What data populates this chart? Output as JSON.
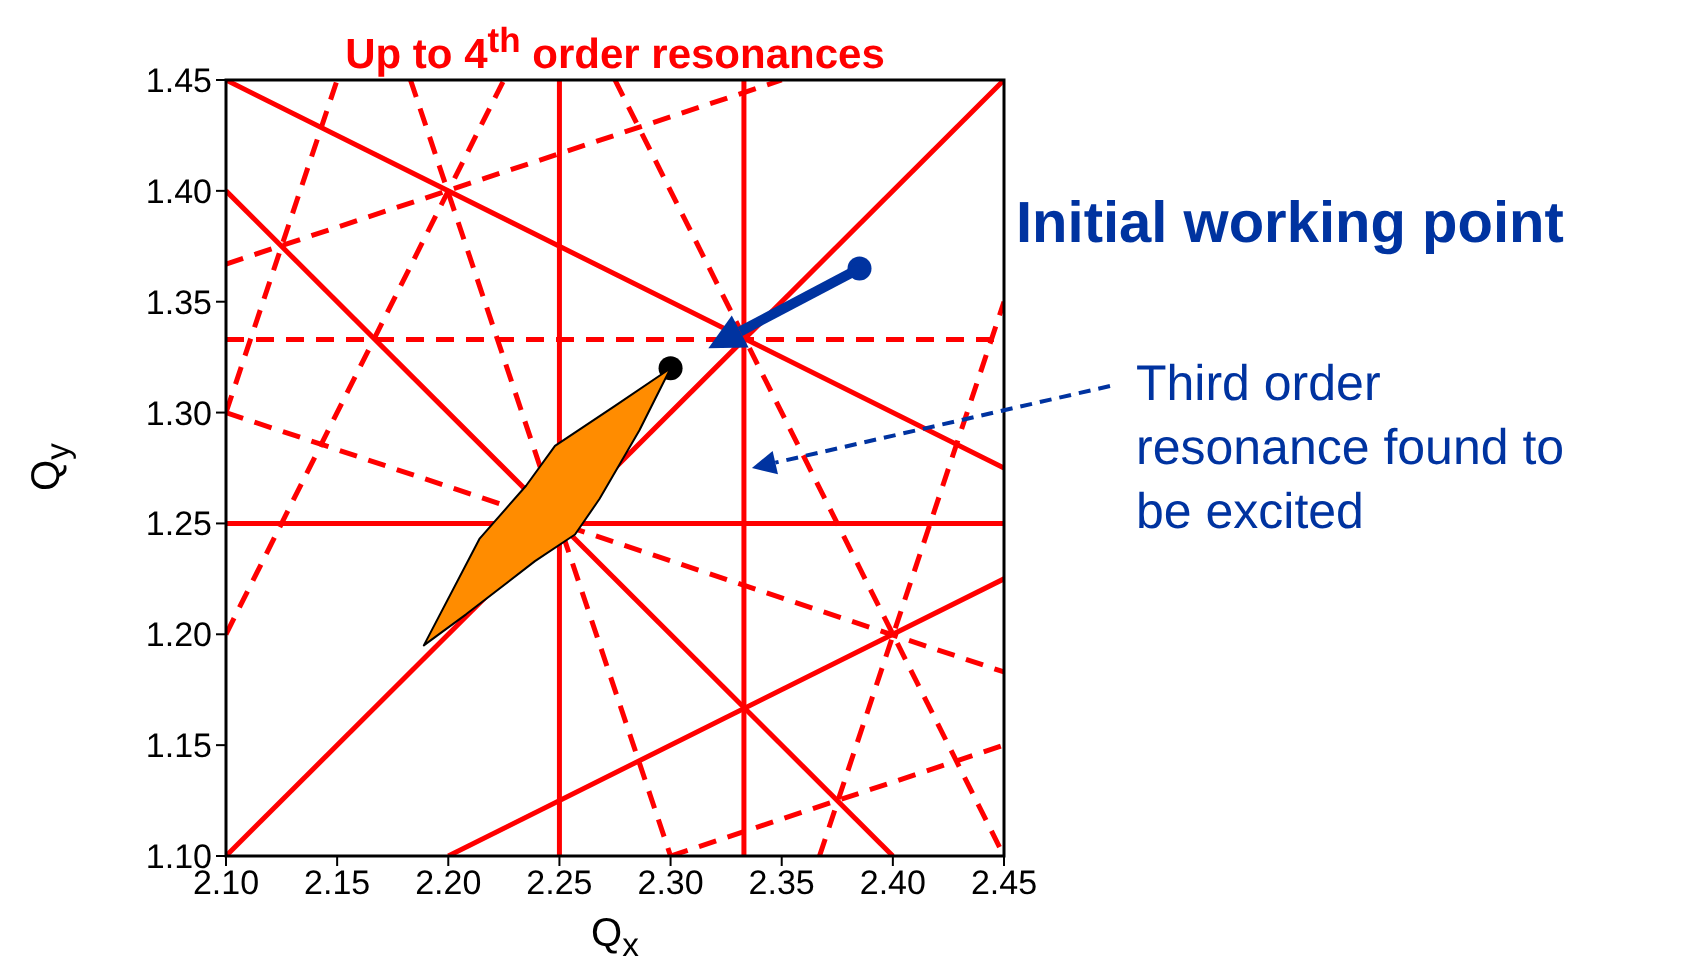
{
  "chart_data": {
    "type": "line",
    "title": "Up to 4$^{th}$ order resonances",
    "xlabel": "Q$_{x}$",
    "ylabel": "Q$_{y}$",
    "xlim": [
      2.1,
      2.45
    ],
    "ylim": [
      1.1,
      1.45
    ],
    "xticks": [
      {
        "value": 2.1,
        "label": "2.10"
      },
      2.15,
      {
        "value": 2.2,
        "label": "2.20"
      },
      2.25,
      {
        "value": 2.3,
        "label": "2.30"
      },
      2.35,
      {
        "value": 2.4,
        "label": "2.40"
      },
      2.45
    ],
    "yticks": [
      {
        "value": 1.1,
        "label": "1.10"
      },
      1.15,
      {
        "value": 1.2,
        "label": "1.20"
      },
      1.25,
      {
        "value": 1.3,
        "label": "1.30"
      },
      1.35,
      {
        "value": 1.4,
        "label": "1.40"
      },
      1.45
    ],
    "series": [
      {
        "color": "#ff0000",
        "line_style": "solid",
        "x": [
          2.25,
          2.25
        ],
        "values": [
          1.1,
          1.45
        ]
      },
      {
        "color": "#ff0000",
        "line_style": "solid",
        "x": [
          2.333,
          2.333
        ],
        "values": [
          1.1,
          1.45
        ]
      },
      {
        "color": "#ff0000",
        "line_style": "solid",
        "x": [
          2.1,
          2.45
        ],
        "values": [
          1.25,
          1.25
        ]
      },
      {
        "color": "#ff0000",
        "line_style": "dashed",
        "x": [
          2.1,
          2.45
        ],
        "values": [
          1.333,
          1.333
        ]
      },
      {
        "color": "#ff0000",
        "line_style": "solid",
        "x": [
          2.1,
          2.45
        ],
        "values": [
          1.1,
          1.45
        ]
      },
      {
        "color": "#ff0000",
        "line_style": "solid",
        "x": [
          2.1,
          2.45
        ],
        "values": [
          1.45,
          1.275
        ]
      },
      {
        "color": "#ff0000",
        "line_style": "solid",
        "x": [
          2.1,
          2.4
        ],
        "values": [
          1.4,
          1.1
        ]
      },
      {
        "color": "#ff0000",
        "line_style": "solid",
        "x": [
          2.2,
          2.45
        ],
        "values": [
          1.1,
          1.225
        ]
      },
      {
        "color": "#ff0000",
        "line_style": "dashed",
        "x": [
          2.1,
          2.35
        ],
        "values": [
          1.367,
          1.45
        ]
      },
      {
        "color": "#ff0000",
        "line_style": "dashed",
        "x": [
          2.1,
          2.15
        ],
        "values": [
          1.3,
          1.45
        ]
      },
      {
        "color": "#ff0000",
        "line_style": "dashed",
        "x": [
          2.1,
          2.225
        ],
        "values": [
          1.2,
          1.45
        ]
      },
      {
        "color": "#ff0000",
        "line_style": "dashed",
        "x": [
          2.183,
          2.3
        ],
        "values": [
          1.45,
          1.1
        ]
      },
      {
        "color": "#ff0000",
        "line_style": "dashed",
        "x": [
          2.1,
          2.45
        ],
        "values": [
          1.3,
          1.183
        ]
      },
      {
        "color": "#ff0000",
        "line_style": "dashed",
        "x": [
          2.275,
          2.45
        ],
        "values": [
          1.45,
          1.1
        ]
      },
      {
        "color": "#ff0000",
        "line_style": "dashed",
        "x": [
          2.367,
          2.45
        ],
        "values": [
          1.1,
          1.35
        ]
      },
      {
        "color": "#ff0000",
        "line_style": "dashed",
        "x": [
          2.3,
          2.45
        ],
        "values": [
          1.1,
          1.15
        ]
      },
      {
        "type": "area",
        "color": "#ff8c00",
        "x": [
          2.3,
          2.275,
          2.248,
          2.235,
          2.214,
          2.189,
          2.208,
          2.239,
          2.257,
          2.268,
          2.286
        ],
        "values": [
          1.32,
          1.303,
          1.285,
          1.267,
          1.243,
          1.195,
          1.209,
          1.233,
          1.245,
          1.261,
          1.292
        ]
      },
      {
        "type": "scatter",
        "marker": "circle",
        "color": "#000000",
        "x": [
          2.3
        ],
        "values": [
          1.32
        ]
      },
      {
        "type": "scatter",
        "marker": "circle",
        "color": "#0033a0",
        "x": [
          2.385
        ],
        "values": [
          1.365
        ]
      }
    ],
    "annotations": [
      {
        "text": "Initial working point",
        "x": 2.385,
        "y": 1.365
      },
      "Third order resonance found to be excited"
    ]
  }
}
